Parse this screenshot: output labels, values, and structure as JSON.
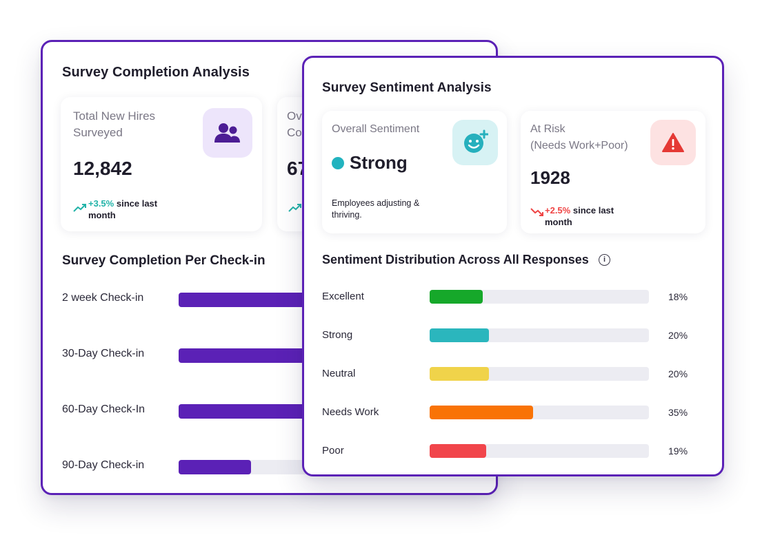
{
  "completion": {
    "title": "Survey Completion Analysis",
    "cards": [
      {
        "label_line1": "Total New Hires",
        "label_line2": "Surveyed",
        "value": "12,842",
        "trend_value": "+3.5%",
        "trend_line1": "since last",
        "trend_line2": "month",
        "icon": "users-icon"
      },
      {
        "label_line1": "Ov",
        "label_line2": "Co",
        "value": "67"
      }
    ],
    "per_checkin_title": "Survey Completion Per Check-in",
    "checkins": [
      {
        "label": "2 week Check-in",
        "value": 0.45
      },
      {
        "label": "30-Day Check-in",
        "value": 0.51
      },
      {
        "label": "60-Day Check-In",
        "value": 0.62
      },
      {
        "label": "90-Day Check-in",
        "value": 0.25
      }
    ],
    "bar_color": "#5b21b6"
  },
  "sentiment": {
    "title": "Survey Sentiment Analysis",
    "overall": {
      "label": "Overall Sentiment",
      "value": "Strong",
      "dot_color": "#22b3bf",
      "description_line1": "Employees adjusting &",
      "description_line2": "thriving.",
      "icon": "smiley-plus-icon"
    },
    "at_risk": {
      "label_line1": "At Risk",
      "label_line2": "(Needs Work+Poor)",
      "value": "1928",
      "trend_value": "+2.5%",
      "trend_line1": "since last",
      "trend_line2": "month",
      "icon": "warning-icon"
    },
    "distribution_title": "Sentiment Distribution Across All Responses",
    "distribution": [
      {
        "label": "Excellent",
        "percent": 18,
        "percent_label": "18%",
        "color": "#16a82a"
      },
      {
        "label": "Strong",
        "percent": 20,
        "percent_label": "20%",
        "color": "#2bb6bd"
      },
      {
        "label": "Neutral",
        "percent": 20,
        "percent_label": "20%",
        "color": "#f0d34a"
      },
      {
        "label": "Needs Work",
        "percent": 35,
        "percent_label": "35%",
        "color": "#f97306"
      },
      {
        "label": "Poor",
        "percent": 19,
        "percent_label": "19%",
        "color": "#f1454b"
      }
    ]
  }
}
